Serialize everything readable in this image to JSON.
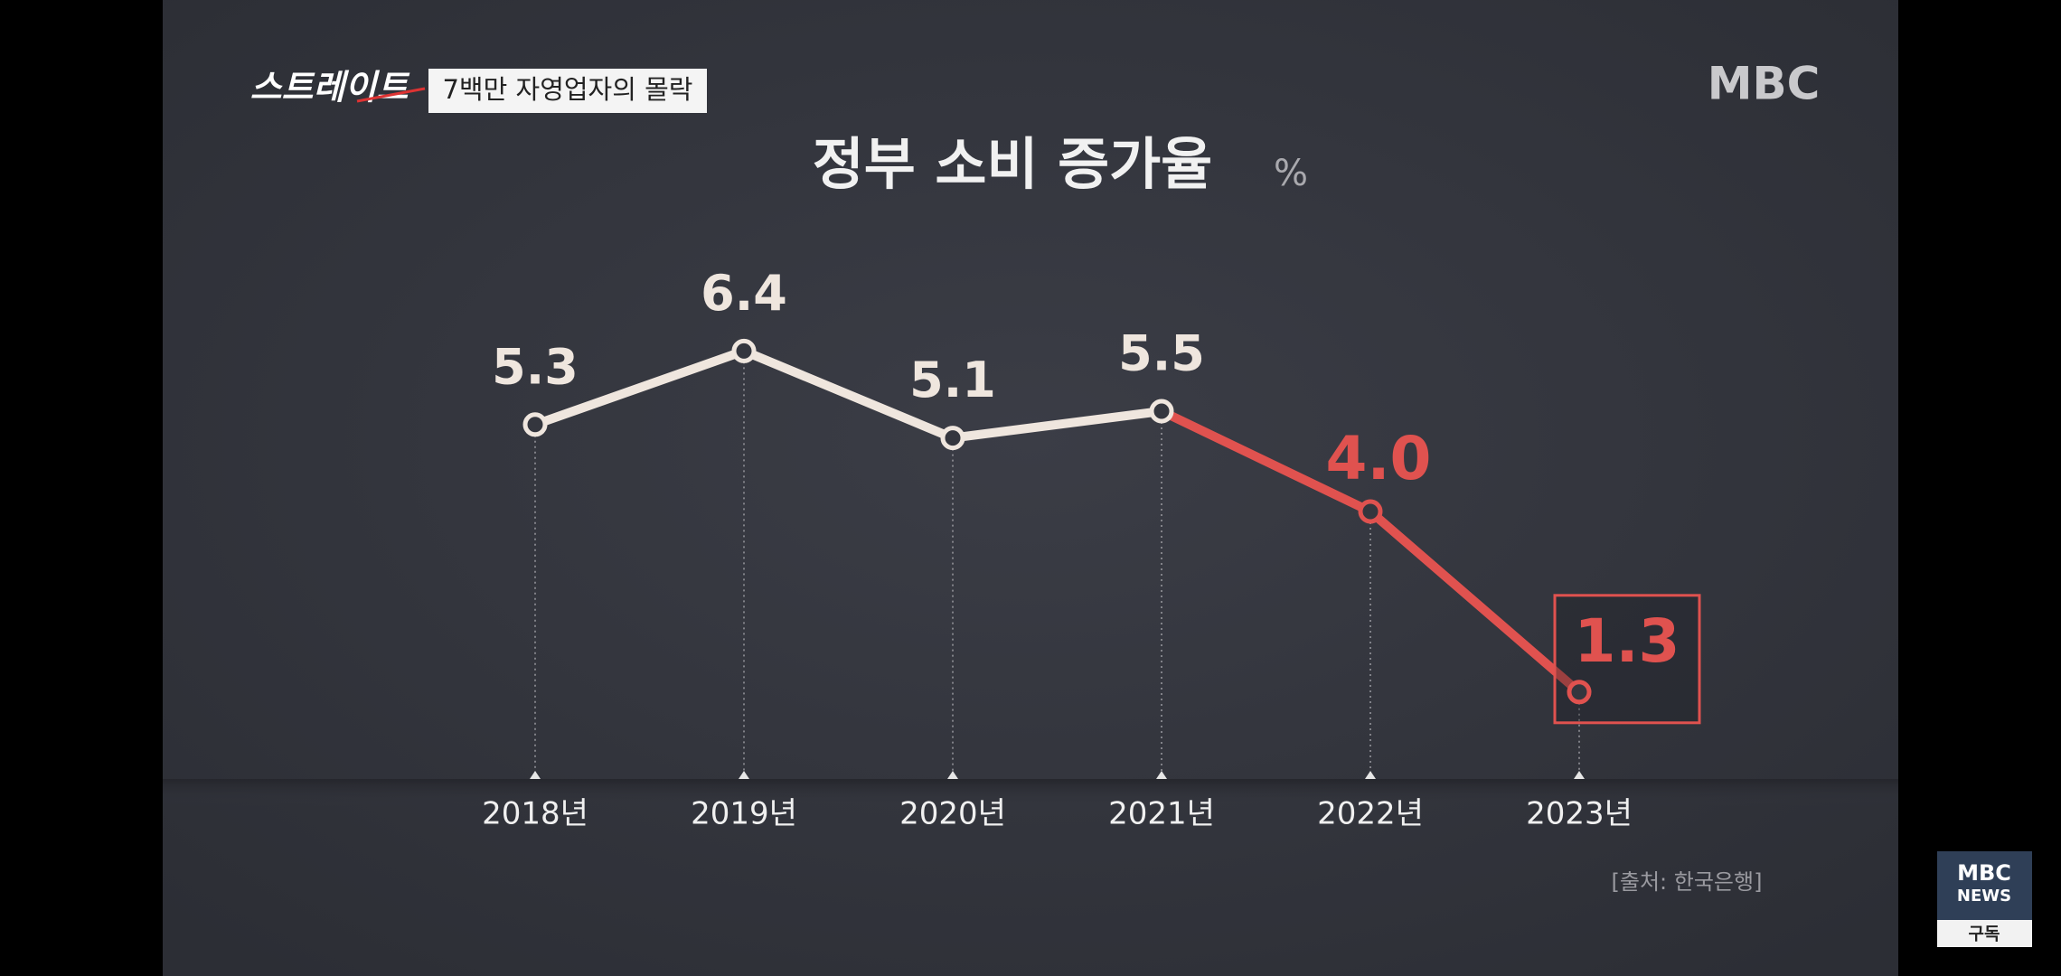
{
  "chart_data": {
    "type": "line",
    "title": "정부 소비 증가율",
    "unit": "%",
    "categories": [
      "2018년",
      "2019년",
      "2020년",
      "2021년",
      "2022년",
      "2023년"
    ],
    "values": [
      5.3,
      6.4,
      5.1,
      5.5,
      4.0,
      1.3
    ],
    "value_labels": [
      "5.3",
      "6.4",
      "5.1",
      "5.5",
      "4.0",
      "1.3"
    ],
    "colors": [
      "#efe6de",
      "#efe6de",
      "#efe6de",
      "#efe6de",
      "#e0524f",
      "#e0524f"
    ],
    "source": "[출처: 한국은행]"
  },
  "ui": {
    "program_logo": "스트레이트",
    "episode_title": "7백만 자영업자의 몰락",
    "broadcaster": "MBC",
    "subscribe": {
      "line1": "MBC",
      "line2": "NEWS",
      "button": "구독"
    }
  }
}
